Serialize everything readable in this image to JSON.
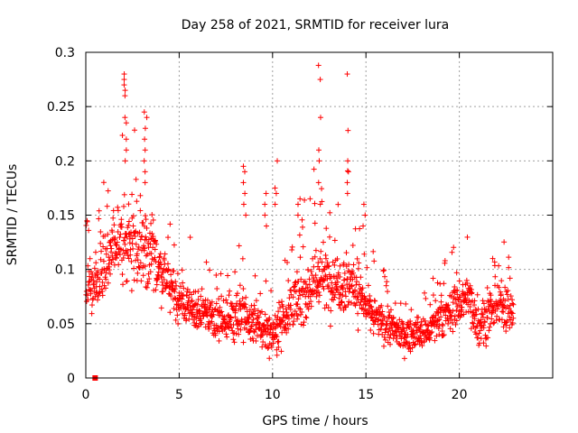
{
  "chart_data": {
    "type": "scatter",
    "title": "Day 258 of 2021, SRMTID for receiver lura",
    "xlabel": "GPS time / hours",
    "ylabel": "SRMTID / TECUs",
    "xlim": [
      0,
      25
    ],
    "ylim": [
      0,
      0.3
    ],
    "xticks": [
      0,
      5,
      10,
      15,
      20
    ],
    "xtick_labels": [
      "0",
      "5",
      "10",
      "15",
      "20"
    ],
    "yticks": [
      0,
      0.05,
      0.1,
      0.15,
      0.2,
      0.25,
      0.3
    ],
    "ytick_labels": [
      "0",
      "0.05",
      "0.1",
      "0.15",
      "0.2",
      "0.25",
      "0.3"
    ],
    "grid": true,
    "marker": "+",
    "marker_color": "#ff0000",
    "outlier": {
      "x": 0.5,
      "y": 0.0
    },
    "trend": {
      "description": "Approximate envelope of the dense scatter (hour, typical SRMTID, spread)",
      "x": [
        0.0,
        0.5,
        1.0,
        1.5,
        2.0,
        2.5,
        3.0,
        3.5,
        4.0,
        4.5,
        5.0,
        5.5,
        6.0,
        6.5,
        7.0,
        7.5,
        8.0,
        8.5,
        9.0,
        9.5,
        10.0,
        10.5,
        11.0,
        11.5,
        12.0,
        12.5,
        13.0,
        13.5,
        14.0,
        14.5,
        15.0,
        15.5,
        16.0,
        16.5,
        17.0,
        17.5,
        18.0,
        18.5,
        19.0,
        19.5,
        20.0,
        20.5,
        21.0,
        21.5,
        22.0,
        22.5,
        22.9
      ],
      "center": [
        0.085,
        0.09,
        0.1,
        0.12,
        0.13,
        0.125,
        0.12,
        0.115,
        0.1,
        0.085,
        0.07,
        0.065,
        0.06,
        0.06,
        0.055,
        0.055,
        0.06,
        0.055,
        0.05,
        0.045,
        0.04,
        0.055,
        0.065,
        0.075,
        0.085,
        0.095,
        0.09,
        0.09,
        0.09,
        0.085,
        0.065,
        0.055,
        0.05,
        0.045,
        0.04,
        0.04,
        0.04,
        0.045,
        0.055,
        0.06,
        0.07,
        0.075,
        0.05,
        0.055,
        0.065,
        0.07,
        0.06
      ],
      "spread": [
        0.025,
        0.025,
        0.03,
        0.035,
        0.04,
        0.04,
        0.04,
        0.035,
        0.03,
        0.025,
        0.02,
        0.02,
        0.02,
        0.02,
        0.02,
        0.02,
        0.025,
        0.025,
        0.02,
        0.02,
        0.02,
        0.025,
        0.025,
        0.03,
        0.03,
        0.035,
        0.03,
        0.03,
        0.035,
        0.03,
        0.02,
        0.02,
        0.018,
        0.018,
        0.015,
        0.015,
        0.015,
        0.018,
        0.02,
        0.02,
        0.025,
        0.025,
        0.02,
        0.02,
        0.02,
        0.025,
        0.02
      ]
    },
    "spikes": [
      {
        "x": 2.1,
        "values": [
          0.2,
          0.21,
          0.22,
          0.235,
          0.24,
          0.26,
          0.265,
          0.27,
          0.275,
          0.28
        ]
      },
      {
        "x": 3.2,
        "values": [
          0.18,
          0.19,
          0.2,
          0.21,
          0.22,
          0.23,
          0.24,
          0.245
        ]
      },
      {
        "x": 8.5,
        "values": [
          0.15,
          0.16,
          0.17,
          0.18,
          0.19,
          0.195
        ]
      },
      {
        "x": 9.6,
        "values": [
          0.14,
          0.15,
          0.16,
          0.17
        ]
      },
      {
        "x": 10.2,
        "values": [
          0.16,
          0.17,
          0.175,
          0.2
        ]
      },
      {
        "x": 11.4,
        "values": [
          0.15,
          0.16,
          0.165
        ]
      },
      {
        "x": 12.5,
        "values": [
          0.16,
          0.18,
          0.2,
          0.21,
          0.24,
          0.275,
          0.288
        ]
      },
      {
        "x": 14.0,
        "values": [
          0.17,
          0.18,
          0.19,
          0.2,
          0.228,
          0.28
        ]
      },
      {
        "x": 14.9,
        "values": [
          0.14,
          0.15,
          0.16
        ]
      }
    ]
  }
}
